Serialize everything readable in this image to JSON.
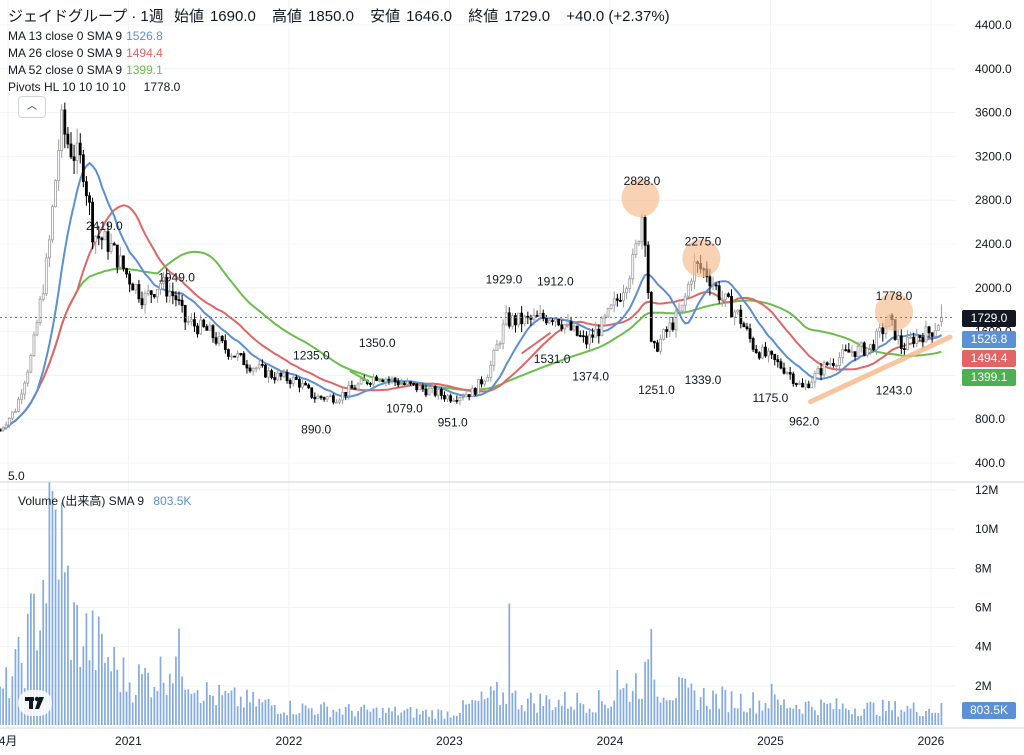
{
  "legend": {
    "symbol": "ジェイドグループ · 1週",
    "ohlc": [
      {
        "label": "始値",
        "value": "1690.0"
      },
      {
        "label": "高値",
        "value": "1850.0"
      },
      {
        "label": "安値",
        "value": "1646.0"
      },
      {
        "label": "終値",
        "value": "1729.0"
      }
    ],
    "change": "+40.0 (+2.37%)",
    "indicators": [
      {
        "name": "MA 13 close 0 SMA 9",
        "value": "1526.8",
        "color": "#5b8fd6"
      },
      {
        "name": "MA 26 close 0 SMA 9",
        "value": "1494.4",
        "color": "#e06666"
      },
      {
        "name": "MA 52 close 0 SMA 9",
        "value": "1399.1",
        "color": "#6abf4b"
      },
      {
        "name": "Pivots HL 10 10 10 10",
        "value": "1778.0",
        "color": "#131722"
      }
    ],
    "collapse_glyph": "︿",
    "volume_name": "Volume (出来高) SMA 9",
    "volume_value": "803.5K"
  },
  "price_tags": {
    "close": "1729.0",
    "ma13": "1526.8",
    "ma26": "1494.4",
    "ma52": "1399.1",
    "volume": "803.5K"
  },
  "colors": {
    "up": "#9e9e9e",
    "down": "#000000",
    "ma13": "#5b8fd6",
    "ma26": "#e06666",
    "ma52": "#6abf4b",
    "volume": "#5b8fd6",
    "highlight": "#f6b98a",
    "close_tag": "#131722",
    "grid": "#f0f3fa"
  },
  "chart_data": {
    "type": "candlestick",
    "price_axis": {
      "ticks": [
        400,
        800,
        1200,
        1600,
        2000,
        2400,
        2800,
        3200,
        3600,
        4000,
        4400
      ],
      "labels": [
        "400.0",
        "800.0",
        "1200.0",
        "1600.0",
        "2000.0",
        "2400.0",
        "2800.0",
        "3200.0",
        "3600.0",
        "4000.0",
        "4400.0"
      ]
    },
    "volume_axis": {
      "ticks": [
        2,
        4,
        6,
        8,
        10,
        12
      ],
      "labels": [
        "2M",
        "4M",
        "6M",
        "8M",
        "10M",
        "12M"
      ]
    },
    "time_axis": {
      "labels": [
        "4月",
        "2021",
        "2022",
        "2023",
        "2024",
        "2025",
        "2026"
      ],
      "at": [
        2020.25,
        2021,
        2022,
        2023,
        2024,
        2025,
        2026
      ]
    },
    "x_range": [
      2020.2,
      2026.15
    ],
    "pivots": [
      {
        "label": "5.0",
        "t": 2020.23,
        "price": 400,
        "kind": "low"
      },
      {
        "label": "2419.0",
        "t": 2020.85,
        "price": 2419,
        "kind": "high"
      },
      {
        "label": "1949.0",
        "t": 2021.3,
        "price": 1949,
        "kind": "high"
      },
      {
        "label": "1235.0",
        "t": 2022.14,
        "price": 1235,
        "kind": "high"
      },
      {
        "label": "890.0",
        "t": 2022.17,
        "price": 890,
        "kind": "low"
      },
      {
        "label": "1350.0",
        "t": 2022.55,
        "price": 1350,
        "kind": "high"
      },
      {
        "label": "1079.0",
        "t": 2022.72,
        "price": 1079,
        "kind": "low"
      },
      {
        "label": "951.0",
        "t": 2023.02,
        "price": 951,
        "kind": "low"
      },
      {
        "label": "1929.0",
        "t": 2023.34,
        "price": 1929,
        "kind": "high"
      },
      {
        "label": "1912.0",
        "t": 2023.66,
        "price": 1912,
        "kind": "high"
      },
      {
        "label": "1531.0",
        "t": 2023.64,
        "price": 1531,
        "kind": "low"
      },
      {
        "label": "1374.0",
        "t": 2023.88,
        "price": 1374,
        "kind": "low"
      },
      {
        "label": "2828.0",
        "t": 2024.2,
        "price": 2828,
        "kind": "high"
      },
      {
        "label": "1251.0",
        "t": 2024.29,
        "price": 1251,
        "kind": "low"
      },
      {
        "label": "2275.0",
        "t": 2024.58,
        "price": 2275,
        "kind": "high"
      },
      {
        "label": "1339.0",
        "t": 2024.58,
        "price": 1339,
        "kind": "low"
      },
      {
        "label": "1175.0",
        "t": 2025.0,
        "price": 1175,
        "kind": "low"
      },
      {
        "label": "962.0",
        "t": 2025.21,
        "price": 962,
        "kind": "low"
      },
      {
        "label": "1778.0",
        "t": 2025.77,
        "price": 1778,
        "kind": "high"
      },
      {
        "label": "1243.0",
        "t": 2025.77,
        "price": 1243,
        "kind": "low"
      }
    ],
    "highlights": [
      {
        "t": 2024.19,
        "price": 2820
      },
      {
        "t": 2024.57,
        "price": 2270
      },
      {
        "t": 2025.77,
        "price": 1780
      }
    ],
    "trendline": {
      "t0": 2025.25,
      "p0": 960,
      "t1": 2026.3,
      "p1": 1550
    },
    "ma26_stub": {
      "t0": 2023.45,
      "p0": 1400,
      "t1": 2023.63,
      "p1": 1590
    },
    "ma52_stub": {
      "t0": 2022.38,
      "p0": 1240,
      "t1": 2022.5,
      "p1": 1140
    },
    "anchors": [
      [
        2020.2,
        700
      ],
      [
        2020.3,
        900
      ],
      [
        2020.4,
        1400
      ],
      [
        2020.5,
        2300
      ],
      [
        2020.58,
        3500
      ],
      [
        2020.63,
        3300
      ],
      [
        2020.72,
        3100
      ],
      [
        2020.78,
        2500
      ],
      [
        2020.88,
        2400
      ],
      [
        2021.0,
        2100
      ],
      [
        2021.1,
        1900
      ],
      [
        2021.2,
        2050
      ],
      [
        2021.3,
        1900
      ],
      [
        2021.35,
        1700
      ],
      [
        2021.5,
        1600
      ],
      [
        2021.6,
        1450
      ],
      [
        2021.75,
        1300
      ],
      [
        2021.9,
        1200
      ],
      [
        2022.05,
        1150
      ],
      [
        2022.16,
        1000
      ],
      [
        2022.3,
        1000
      ],
      [
        2022.42,
        1100
      ],
      [
        2022.55,
        1200
      ],
      [
        2022.72,
        1120
      ],
      [
        2022.9,
        1050
      ],
      [
        2023.0,
        1000
      ],
      [
        2023.15,
        1050
      ],
      [
        2023.25,
        1250
      ],
      [
        2023.35,
        1700
      ],
      [
        2023.5,
        1700
      ],
      [
        2023.65,
        1750
      ],
      [
        2023.85,
        1500
      ],
      [
        2023.95,
        1650
      ],
      [
        2024.05,
        1900
      ],
      [
        2024.15,
        2250
      ],
      [
        2024.21,
        2750
      ],
      [
        2024.26,
        1400
      ],
      [
        2024.33,
        1550
      ],
      [
        2024.45,
        1800
      ],
      [
        2024.52,
        2200
      ],
      [
        2024.6,
        2150
      ],
      [
        2024.7,
        1900
      ],
      [
        2024.8,
        1750
      ],
      [
        2024.9,
        1450
      ],
      [
        2025.0,
        1350
      ],
      [
        2025.1,
        1250
      ],
      [
        2025.2,
        1080
      ],
      [
        2025.35,
        1300
      ],
      [
        2025.5,
        1420
      ],
      [
        2025.62,
        1450
      ],
      [
        2025.74,
        1700
      ],
      [
        2025.82,
        1450
      ],
      [
        2025.9,
        1550
      ],
      [
        2026.0,
        1600
      ],
      [
        2026.07,
        1729
      ]
    ],
    "volume_anchors": [
      [
        2020.2,
        1.5
      ],
      [
        2020.35,
        3.5
      ],
      [
        2020.45,
        6.5
      ],
      [
        2020.52,
        9.5
      ],
      [
        2020.55,
        11.0
      ],
      [
        2020.65,
        5.0
      ],
      [
        2020.8,
        4.0
      ],
      [
        2021.0,
        2.2
      ],
      [
        2021.2,
        2.6
      ],
      [
        2021.3,
        3.5
      ],
      [
        2021.5,
        1.5
      ],
      [
        2022.0,
        0.9
      ],
      [
        2022.5,
        0.7
      ],
      [
        2023.0,
        0.6
      ],
      [
        2023.3,
        1.5
      ],
      [
        2023.5,
        1.2
      ],
      [
        2024.0,
        1.2
      ],
      [
        2024.2,
        2.4
      ],
      [
        2024.5,
        1.5
      ],
      [
        2025.0,
        1.1
      ],
      [
        2025.5,
        0.9
      ],
      [
        2026.07,
        0.8
      ]
    ],
    "volume_spikes": [
      [
        2020.55,
        11.0
      ],
      [
        2020.6,
        7.8
      ],
      [
        2021.3,
        3.5
      ],
      [
        2023.37,
        6.2
      ],
      [
        2024.26,
        4.9
      ],
      [
        2024.05,
        2.8
      ],
      [
        2025.0,
        2.1
      ]
    ]
  }
}
